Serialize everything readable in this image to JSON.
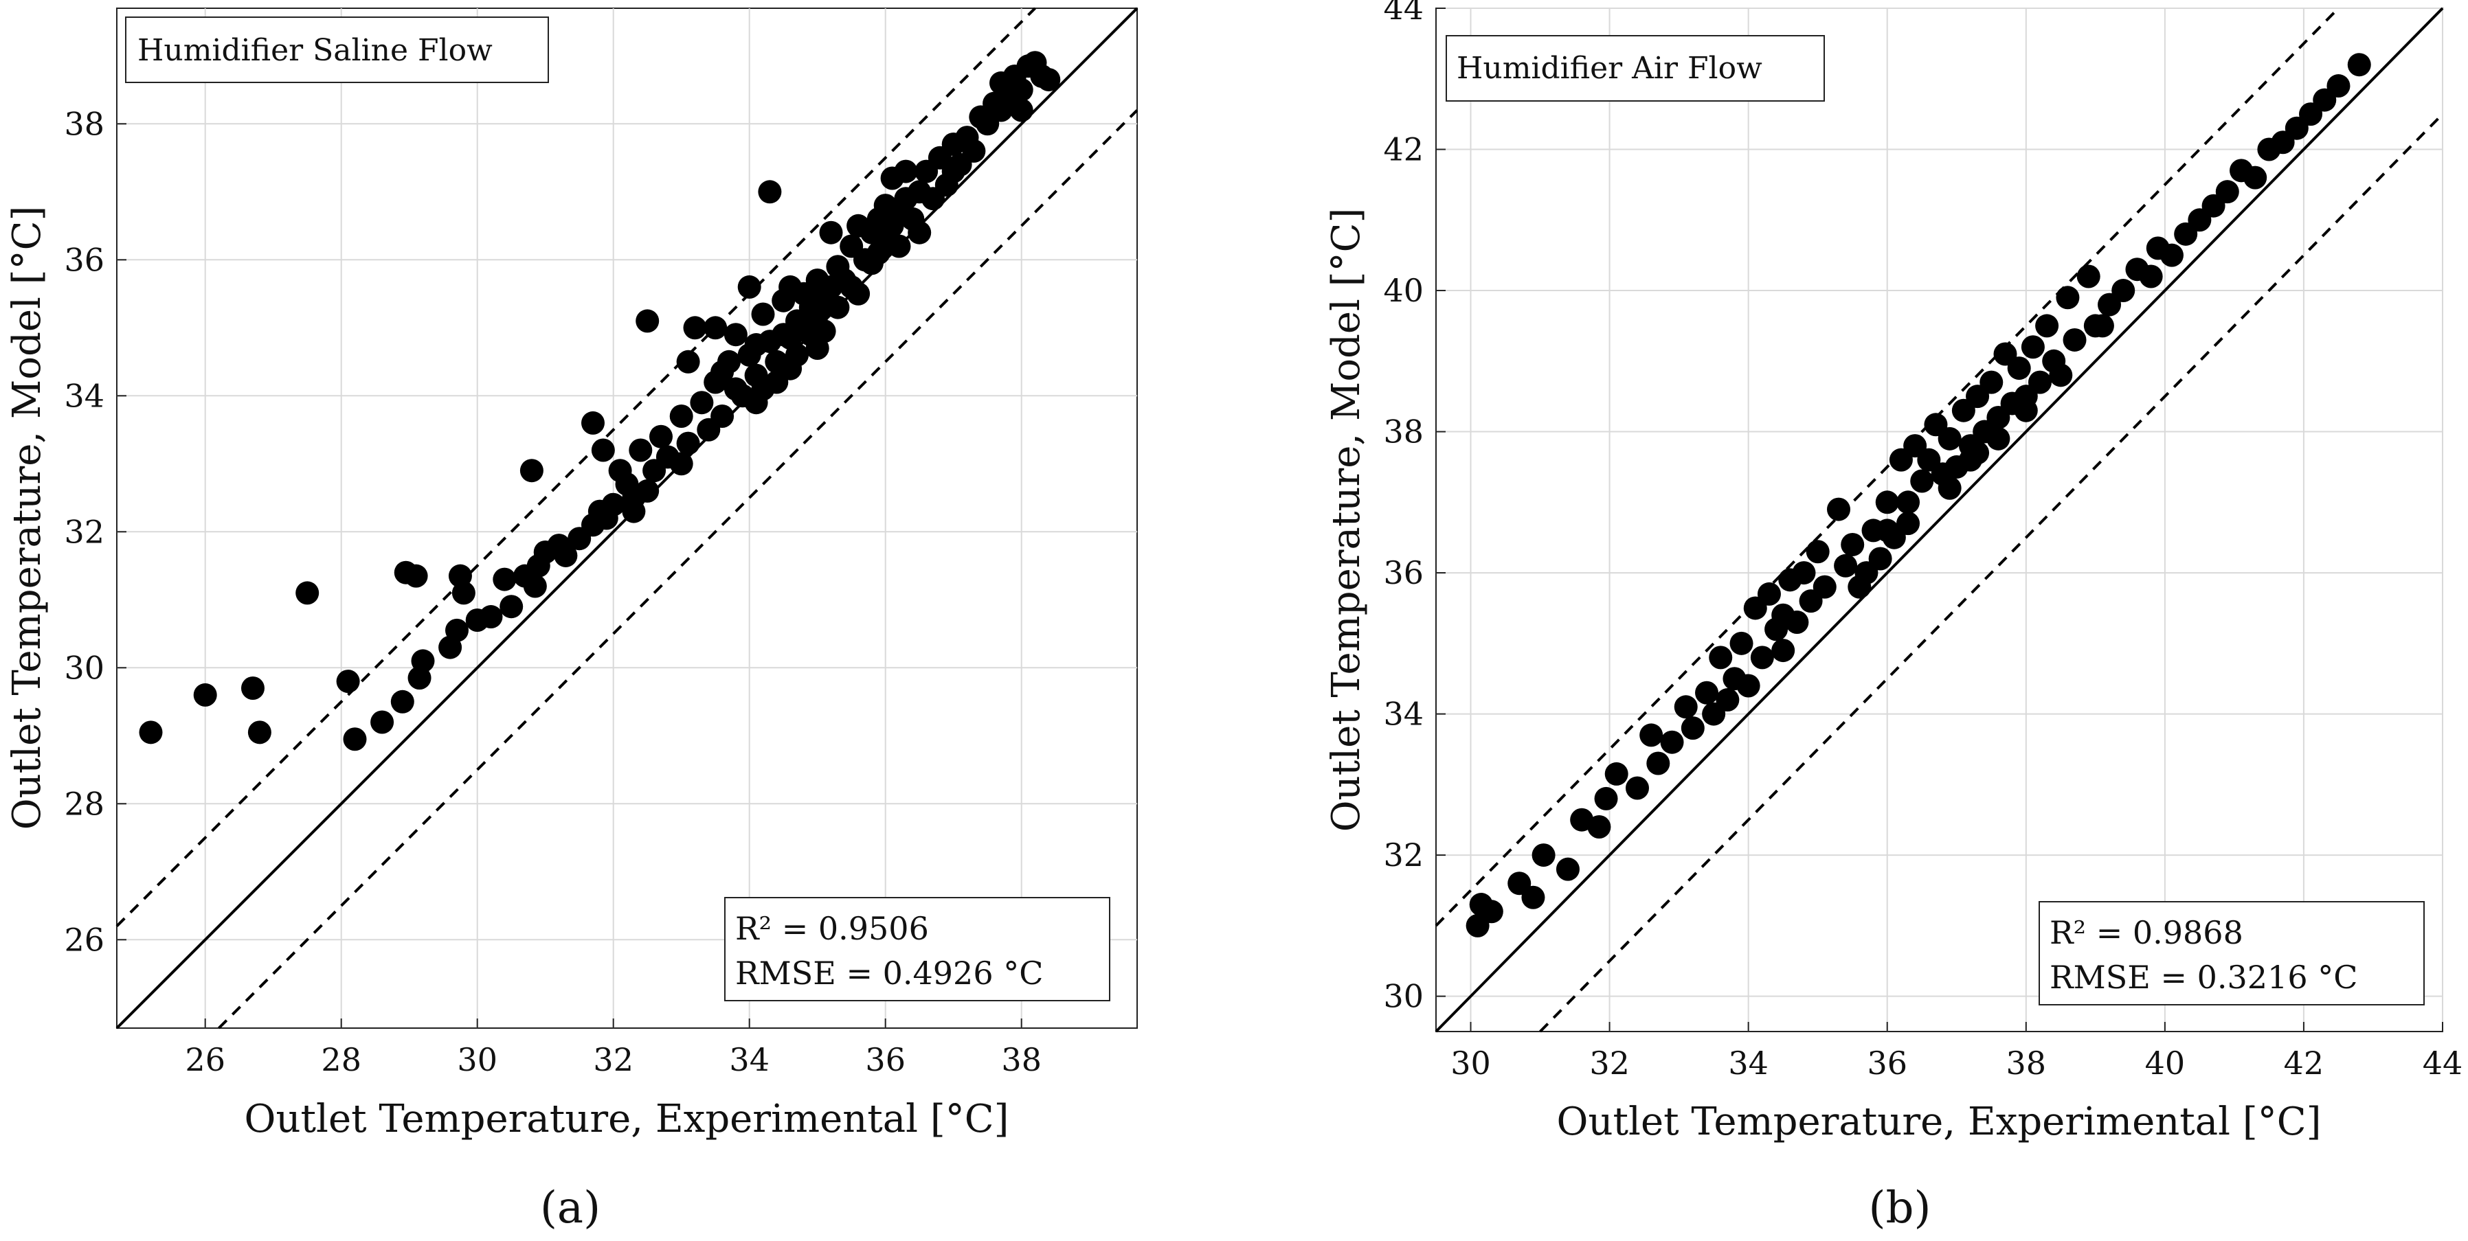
{
  "chart_data": [
    {
      "type": "scatter",
      "panel_label": "(a)",
      "title": "Humidifier Saline Flow",
      "xlabel": "Outlet Temperature, Experimental [°C]",
      "ylabel": "Outlet Temperature, Model [°C]",
      "xlim": [
        24.7,
        39.7
      ],
      "ylim": [
        24.7,
        39.7
      ],
      "xticks": [
        26,
        28,
        30,
        32,
        34,
        36,
        38
      ],
      "yticks": [
        26,
        28,
        30,
        32,
        34,
        36,
        38
      ],
      "grid": true,
      "reference_lines": [
        {
          "name": "y = x",
          "style": "solid",
          "offset": 0
        },
        {
          "name": "+1.5 °C",
          "style": "dashed",
          "offset": 1.5
        },
        {
          "name": "-1.5 °C",
          "style": "dashed",
          "offset": -1.5
        }
      ],
      "stats": {
        "r2_label": "R²",
        "r2_value": "0.9506",
        "rmse_label": "RMSE",
        "rmse_value": "0.4926 °C"
      },
      "legend_position": "bottom-right",
      "points": [
        [
          25.2,
          29.05
        ],
        [
          26.0,
          29.6
        ],
        [
          26.7,
          29.7
        ],
        [
          26.8,
          29.05
        ],
        [
          27.5,
          31.1
        ],
        [
          28.1,
          29.8
        ],
        [
          28.2,
          28.95
        ],
        [
          28.6,
          29.2
        ],
        [
          28.9,
          29.5
        ],
        [
          28.95,
          31.4
        ],
        [
          29.1,
          31.35
        ],
        [
          29.15,
          29.85
        ],
        [
          29.2,
          30.1
        ],
        [
          29.6,
          30.3
        ],
        [
          29.7,
          30.55
        ],
        [
          29.75,
          31.35
        ],
        [
          29.8,
          31.1
        ],
        [
          30.0,
          30.7
        ],
        [
          30.2,
          30.75
        ],
        [
          30.4,
          31.3
        ],
        [
          30.5,
          30.9
        ],
        [
          30.7,
          31.35
        ],
        [
          30.85,
          31.2
        ],
        [
          30.9,
          31.5
        ],
        [
          30.8,
          32.9
        ],
        [
          31.0,
          31.7
        ],
        [
          31.2,
          31.8
        ],
        [
          31.3,
          31.65
        ],
        [
          31.5,
          31.9
        ],
        [
          31.7,
          32.1
        ],
        [
          31.8,
          32.3
        ],
        [
          31.9,
          32.2
        ],
        [
          31.7,
          33.6
        ],
        [
          31.85,
          33.2
        ],
        [
          32.0,
          32.4
        ],
        [
          32.1,
          32.9
        ],
        [
          32.2,
          32.7
        ],
        [
          32.3,
          32.5
        ],
        [
          32.4,
          33.2
        ],
        [
          32.5,
          32.6
        ],
        [
          32.6,
          32.9
        ],
        [
          32.3,
          32.3
        ],
        [
          32.5,
          35.1
        ],
        [
          32.7,
          33.4
        ],
        [
          32.8,
          33.1
        ],
        [
          33.0,
          33.7
        ],
        [
          33.0,
          33.0
        ],
        [
          33.1,
          33.3
        ],
        [
          33.1,
          34.5
        ],
        [
          33.2,
          35.0
        ],
        [
          33.3,
          33.9
        ],
        [
          33.4,
          33.5
        ],
        [
          33.5,
          34.2
        ],
        [
          33.5,
          35.0
        ],
        [
          33.6,
          33.7
        ],
        [
          33.7,
          34.5
        ],
        [
          33.8,
          34.1
        ],
        [
          33.8,
          34.9
        ],
        [
          33.9,
          34.0
        ],
        [
          34.0,
          35.6
        ],
        [
          34.0,
          34.6
        ],
        [
          34.1,
          33.9
        ],
        [
          34.1,
          34.3
        ],
        [
          34.2,
          35.2
        ],
        [
          34.3,
          34.8
        ],
        [
          34.3,
          37.0
        ],
        [
          34.4,
          34.5
        ],
        [
          34.4,
          34.2
        ],
        [
          34.5,
          35.4
        ],
        [
          34.5,
          34.9
        ],
        [
          34.6,
          35.6
        ],
        [
          34.6,
          34.4
        ],
        [
          34.7,
          35.1
        ],
        [
          34.7,
          34.6
        ],
        [
          34.8,
          35.5
        ],
        [
          34.8,
          35.0
        ],
        [
          34.9,
          34.9
        ],
        [
          34.9,
          35.3
        ],
        [
          35.0,
          35.7
        ],
        [
          35.0,
          35.2
        ],
        [
          35.1,
          35.4
        ],
        [
          35.1,
          34.95
        ],
        [
          35.2,
          36.4
        ],
        [
          35.2,
          35.6
        ],
        [
          35.3,
          35.3
        ],
        [
          35.3,
          35.9
        ],
        [
          35.4,
          35.7
        ],
        [
          35.5,
          36.2
        ],
        [
          35.5,
          35.6
        ],
        [
          35.6,
          36.5
        ],
        [
          35.6,
          35.5
        ],
        [
          35.7,
          36.0
        ],
        [
          35.8,
          36.4
        ],
        [
          35.8,
          35.95
        ],
        [
          35.9,
          36.6
        ],
        [
          35.9,
          36.1
        ],
        [
          36.0,
          36.8
        ],
        [
          36.0,
          36.3
        ],
        [
          36.1,
          36.5
        ],
        [
          36.1,
          37.2
        ],
        [
          36.2,
          36.7
        ],
        [
          36.2,
          36.2
        ],
        [
          36.3,
          36.9
        ],
        [
          36.3,
          37.3
        ],
        [
          36.4,
          36.6
        ],
        [
          36.5,
          37.0
        ],
        [
          36.5,
          36.4
        ],
        [
          36.6,
          37.3
        ],
        [
          36.7,
          36.9
        ],
        [
          36.8,
          37.5
        ],
        [
          36.9,
          37.1
        ],
        [
          37.0,
          37.7
        ],
        [
          37.0,
          37.3
        ],
        [
          37.1,
          37.4
        ],
        [
          37.2,
          37.8
        ],
        [
          37.3,
          37.6
        ],
        [
          37.4,
          38.1
        ],
        [
          37.5,
          38.0
        ],
        [
          37.6,
          38.3
        ],
        [
          37.7,
          38.2
        ],
        [
          37.7,
          38.6
        ],
        [
          37.8,
          38.4
        ],
        [
          37.9,
          38.7
        ],
        [
          38.0,
          38.5
        ],
        [
          38.1,
          38.85
        ],
        [
          38.2,
          38.9
        ],
        [
          38.3,
          38.7
        ],
        [
          38.4,
          38.65
        ],
        [
          38.0,
          38.2
        ],
        [
          34.2,
          34.1
        ],
        [
          34.6,
          34.85
        ],
        [
          35.0,
          34.7
        ],
        [
          33.6,
          34.35
        ],
        [
          34.1,
          34.75
        ],
        [
          34.9,
          35.45
        ]
      ]
    },
    {
      "type": "scatter",
      "panel_label": "(b)",
      "title": "Humidifier Air Flow",
      "xlabel": "Outlet Temperature, Experimental [°C]",
      "ylabel": "Outlet Temperature, Model [°C]",
      "xlim": [
        29.5,
        44.0
      ],
      "ylim": [
        29.5,
        44.0
      ],
      "xticks": [
        30,
        32,
        34,
        36,
        38,
        40,
        42,
        44
      ],
      "yticks": [
        30,
        32,
        34,
        36,
        38,
        40,
        42,
        44
      ],
      "grid": true,
      "reference_lines": [
        {
          "name": "y = x",
          "style": "solid",
          "offset": 0
        },
        {
          "name": "+1.5 °C",
          "style": "dashed",
          "offset": 1.5
        },
        {
          "name": "-1.5 °C",
          "style": "dashed",
          "offset": -1.5
        }
      ],
      "stats": {
        "r2_label": "R²",
        "r2_value": "0.9868",
        "rmse_label": "RMSE",
        "rmse_value": "0.3216 °C"
      },
      "legend_position": "bottom-right",
      "points": [
        [
          30.1,
          31.0
        ],
        [
          30.15,
          31.3
        ],
        [
          30.3,
          31.2
        ],
        [
          30.7,
          31.6
        ],
        [
          30.9,
          31.4
        ],
        [
          31.05,
          32.0
        ],
        [
          31.4,
          31.8
        ],
        [
          31.6,
          32.5
        ],
        [
          31.85,
          32.4
        ],
        [
          31.95,
          32.8
        ],
        [
          32.1,
          33.15
        ],
        [
          32.4,
          32.95
        ],
        [
          32.6,
          33.7
        ],
        [
          32.7,
          33.3
        ],
        [
          32.9,
          33.6
        ],
        [
          33.1,
          34.1
        ],
        [
          33.2,
          33.8
        ],
        [
          33.4,
          34.3
        ],
        [
          33.5,
          34.0
        ],
        [
          33.6,
          34.8
        ],
        [
          33.7,
          34.2
        ],
        [
          33.8,
          34.5
        ],
        [
          33.9,
          35.0
        ],
        [
          34.0,
          34.4
        ],
        [
          34.1,
          35.5
        ],
        [
          34.2,
          34.8
        ],
        [
          34.3,
          35.7
        ],
        [
          34.4,
          35.2
        ],
        [
          34.5,
          35.4
        ],
        [
          34.6,
          35.9
        ],
        [
          34.7,
          35.3
        ],
        [
          34.8,
          36.0
        ],
        [
          34.9,
          35.6
        ],
        [
          35.0,
          36.3
        ],
        [
          35.1,
          35.8
        ],
        [
          35.3,
          36.9
        ],
        [
          35.4,
          36.1
        ],
        [
          35.5,
          36.4
        ],
        [
          35.6,
          35.8
        ],
        [
          35.8,
          36.6
        ],
        [
          35.9,
          36.2
        ],
        [
          36.0,
          37.0
        ],
        [
          36.1,
          36.5
        ],
        [
          36.2,
          37.6
        ],
        [
          36.3,
          37.0
        ],
        [
          36.4,
          37.8
        ],
        [
          36.5,
          37.3
        ],
        [
          36.6,
          37.6
        ],
        [
          36.7,
          38.1
        ],
        [
          36.8,
          37.4
        ],
        [
          36.9,
          37.9
        ],
        [
          37.0,
          37.5
        ],
        [
          37.1,
          38.3
        ],
        [
          37.2,
          37.8
        ],
        [
          37.3,
          38.5
        ],
        [
          37.4,
          38.0
        ],
        [
          37.5,
          38.7
        ],
        [
          37.6,
          38.2
        ],
        [
          37.7,
          39.1
        ],
        [
          37.8,
          38.4
        ],
        [
          37.9,
          38.9
        ],
        [
          38.0,
          38.5
        ],
        [
          38.1,
          39.2
        ],
        [
          38.2,
          38.7
        ],
        [
          38.3,
          39.5
        ],
        [
          38.4,
          39.0
        ],
        [
          38.6,
          39.9
        ],
        [
          38.7,
          39.3
        ],
        [
          38.9,
          40.2
        ],
        [
          39.0,
          39.5
        ],
        [
          39.2,
          39.8
        ],
        [
          39.4,
          40.0
        ],
        [
          39.6,
          40.3
        ],
        [
          39.8,
          40.2
        ],
        [
          39.9,
          40.6
        ],
        [
          40.1,
          40.5
        ],
        [
          40.3,
          40.8
        ],
        [
          40.5,
          41.0
        ],
        [
          40.7,
          41.2
        ],
        [
          40.9,
          41.4
        ],
        [
          41.1,
          41.7
        ],
        [
          41.3,
          41.6
        ],
        [
          41.5,
          42.0
        ],
        [
          41.7,
          42.1
        ],
        [
          41.9,
          42.3
        ],
        [
          42.1,
          42.5
        ],
        [
          42.3,
          42.7
        ],
        [
          42.5,
          42.9
        ],
        [
          42.8,
          43.2
        ],
        [
          36.9,
          37.2
        ],
        [
          37.2,
          37.6
        ],
        [
          37.6,
          37.9
        ],
        [
          38.0,
          38.3
        ],
        [
          37.3,
          37.7
        ],
        [
          34.5,
          34.9
        ],
        [
          35.7,
          36.0
        ],
        [
          36.3,
          36.7
        ],
        [
          38.5,
          38.8
        ],
        [
          39.1,
          39.5
        ],
        [
          36.0,
          36.6
        ]
      ]
    }
  ]
}
